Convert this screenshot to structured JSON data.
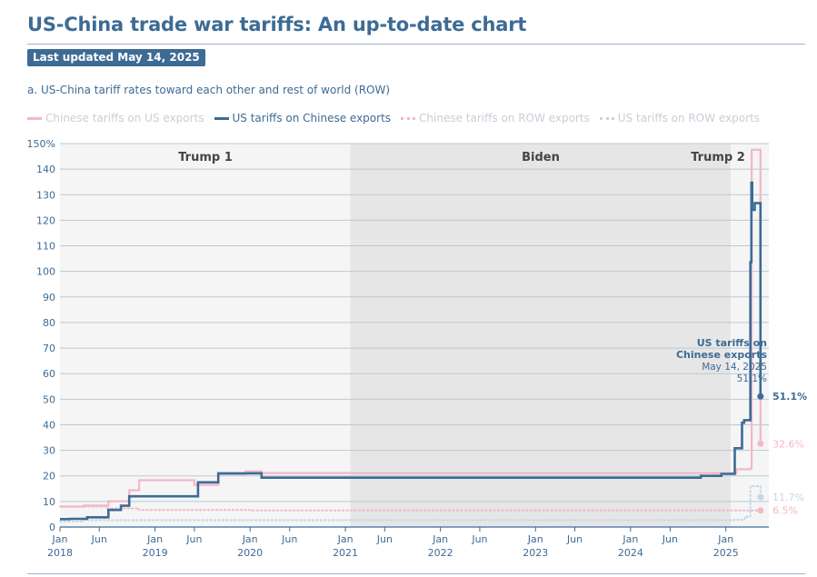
{
  "header": {
    "title": "US-China trade war tariffs: An up-to-date chart",
    "updated_badge": "Last updated May 14, 2025"
  },
  "chart_data": {
    "type": "line",
    "subtitle": "a. US-China tariff rates toward each other and rest of world (ROW)",
    "ylim": [
      0,
      150
    ],
    "y_ticks": [
      0,
      10,
      20,
      30,
      40,
      50,
      60,
      70,
      80,
      90,
      100,
      110,
      120,
      130,
      140,
      150
    ],
    "y_tick_labels": [
      "0",
      "10",
      "20",
      "30",
      "40",
      "50",
      "60",
      "70",
      "80",
      "90",
      "100",
      "110",
      "120",
      "130",
      "140",
      "150%"
    ],
    "x_range": [
      "2018-01-01",
      "2025-06-15"
    ],
    "x_ticks": [
      {
        "date": "2018-01-01",
        "top": "Jan",
        "bottom": "2018"
      },
      {
        "date": "2018-06-01",
        "top": "Jun",
        "bottom": ""
      },
      {
        "date": "2019-01-01",
        "top": "Jan",
        "bottom": "2019"
      },
      {
        "date": "2019-06-01",
        "top": "Jun",
        "bottom": ""
      },
      {
        "date": "2020-01-01",
        "top": "Jan",
        "bottom": "2020"
      },
      {
        "date": "2020-06-01",
        "top": "Jun",
        "bottom": ""
      },
      {
        "date": "2021-01-01",
        "top": "Jan",
        "bottom": "2021"
      },
      {
        "date": "2021-06-01",
        "top": "Jun",
        "bottom": ""
      },
      {
        "date": "2022-01-01",
        "top": "Jan",
        "bottom": "2022"
      },
      {
        "date": "2022-06-01",
        "top": "Jun",
        "bottom": ""
      },
      {
        "date": "2023-01-01",
        "top": "Jan",
        "bottom": "2023"
      },
      {
        "date": "2023-06-01",
        "top": "Jun",
        "bottom": ""
      },
      {
        "date": "2024-01-01",
        "top": "Jan",
        "bottom": "2024"
      },
      {
        "date": "2024-06-01",
        "top": "Jun",
        "bottom": ""
      },
      {
        "date": "2025-01-01",
        "top": "Jan",
        "bottom": "2025"
      }
    ],
    "grid": true,
    "legend_position": "top",
    "periods": [
      {
        "label": "Trump 1",
        "start": "2018-01-01",
        "end": "2021-01-20",
        "color": "#f5f5f5"
      },
      {
        "label": "Biden",
        "start": "2021-01-20",
        "end": "2025-01-20",
        "color": "#e6e6e6"
      },
      {
        "label": "Trump 2",
        "start": "2025-01-20",
        "end": "2025-06-15",
        "color": "#f5f5f5"
      }
    ],
    "series": [
      {
        "name": "Chinese tariffs on US exports",
        "color": "#f2b8c6",
        "style": "solid",
        "step": true,
        "points": [
          [
            "2018-01-01",
            8.0
          ],
          [
            "2018-04-02",
            8.4
          ],
          [
            "2018-07-06",
            10.1
          ],
          [
            "2018-09-24",
            14.4
          ],
          [
            "2018-11-01",
            18.3
          ],
          [
            "2019-06-01",
            16.5
          ],
          [
            "2019-09-01",
            20.7
          ],
          [
            "2019-12-15",
            21.8
          ],
          [
            "2020-02-14",
            21.1
          ],
          [
            "2024-12-15",
            21.1
          ],
          [
            "2025-02-10",
            22.6
          ],
          [
            "2025-04-05",
            23.0
          ],
          [
            "2025-04-10",
            147.6
          ],
          [
            "2025-05-14",
            32.6
          ]
        ],
        "end_label": "32.6%"
      },
      {
        "name": "US tariffs on Chinese exports",
        "color": "#3d6b95",
        "style": "solid",
        "step": true,
        "points": [
          [
            "2018-01-01",
            3.1
          ],
          [
            "2018-02-07",
            3.2
          ],
          [
            "2018-04-15",
            3.8
          ],
          [
            "2018-07-06",
            6.7
          ],
          [
            "2018-08-23",
            8.3
          ],
          [
            "2018-09-24",
            12.0
          ],
          [
            "2019-06-15",
            17.5
          ],
          [
            "2019-09-01",
            21.0
          ],
          [
            "2020-02-14",
            19.3
          ],
          [
            "2024-09-27",
            20.0
          ],
          [
            "2024-12-15",
            20.8
          ],
          [
            "2025-02-04",
            30.8
          ],
          [
            "2025-03-04",
            40.8
          ],
          [
            "2025-03-12",
            41.8
          ],
          [
            "2025-04-05",
            103.6
          ],
          [
            "2025-04-09",
            134.7
          ],
          [
            "2025-04-12",
            124.1
          ],
          [
            "2025-04-22",
            126.7
          ],
          [
            "2025-05-14",
            51.1
          ]
        ],
        "end_label": "51.1%"
      },
      {
        "name": "Chinese tariffs on ROW exports",
        "color": "#f2b8c6",
        "style": "dotted",
        "step": true,
        "points": [
          [
            "2018-01-01",
            8.0
          ],
          [
            "2018-07-01",
            7.3
          ],
          [
            "2018-11-01",
            6.7
          ],
          [
            "2020-01-01",
            6.5
          ],
          [
            "2025-05-14",
            6.5
          ]
        ],
        "end_label": "6.5%"
      },
      {
        "name": "US tariffs on ROW exports",
        "color": "#c5d6e5",
        "style": "dotted",
        "step": true,
        "points": [
          [
            "2018-01-01",
            2.2
          ],
          [
            "2018-04-01",
            2.7
          ],
          [
            "2025-02-01",
            2.8
          ],
          [
            "2025-03-15",
            4.0
          ],
          [
            "2025-04-05",
            16.0
          ],
          [
            "2025-05-14",
            11.7
          ]
        ],
        "end_label": "11.7%"
      }
    ],
    "annotation": {
      "title_line1": "US tariffs on",
      "title_line2": "Chinese exports",
      "date": "May 14, 2025",
      "value": "51.1%"
    }
  }
}
